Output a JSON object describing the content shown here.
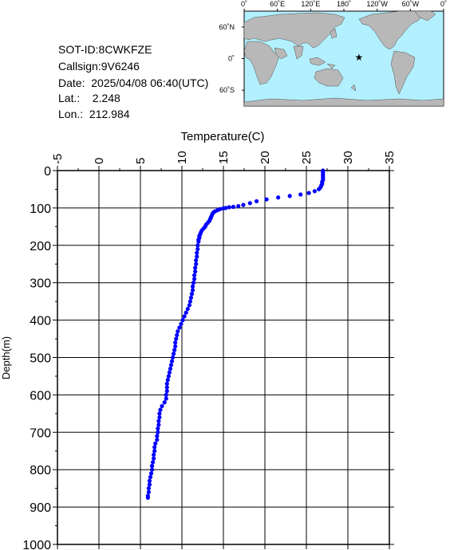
{
  "header": {
    "sot_id": "SOT-ID:8CWKFZE",
    "callsign": "Callsign:9V6246",
    "date": "Date:  2025/04/08 06:40(UTC)",
    "lat": "Lat.:    2.248",
    "lon": "Lon.:  212.984"
  },
  "map": {
    "top_labels": [
      "0˚",
      "60˚E",
      "120˚E",
      "180˚",
      "120˚W",
      "60˚W",
      "0˚"
    ],
    "side_labels": [
      "60˚N",
      "0˚",
      "60˚S"
    ],
    "marker": {
      "lat": 2.248,
      "lon": 212.984
    },
    "colors": {
      "ocean": "#b3f0ff",
      "land": "#b8b8b8",
      "marker": "#ff0000"
    }
  },
  "chart_data": {
    "type": "scatter",
    "xlabel": "Temperature(C)",
    "ylabel": "Depth(m)",
    "xlim": [
      -5,
      35
    ],
    "ylim": [
      0,
      1000
    ],
    "x_ticks": [
      -5,
      0,
      5,
      10,
      15,
      20,
      25,
      30,
      35
    ],
    "y_ticks": [
      0,
      100,
      200,
      300,
      400,
      500,
      600,
      700,
      800,
      900,
      1000
    ],
    "grid": true,
    "color": "#0000ff",
    "points": [
      [
        27.0,
        0
      ],
      [
        27.0,
        5
      ],
      [
        27.0,
        10
      ],
      [
        27.0,
        15
      ],
      [
        27.0,
        20
      ],
      [
        27.0,
        25
      ],
      [
        26.9,
        30
      ],
      [
        26.9,
        35
      ],
      [
        26.8,
        40
      ],
      [
        26.7,
        45
      ],
      [
        26.5,
        50
      ],
      [
        26.0,
        55
      ],
      [
        25.3,
        60
      ],
      [
        24.3,
        64
      ],
      [
        23.0,
        68
      ],
      [
        21.6,
        72
      ],
      [
        20.2,
        77
      ],
      [
        19.0,
        82
      ],
      [
        18.2,
        87
      ],
      [
        17.4,
        92
      ],
      [
        16.8,
        95
      ],
      [
        16.2,
        97
      ],
      [
        15.7,
        98
      ],
      [
        15.3,
        100
      ],
      [
        15.0,
        101
      ],
      [
        14.6,
        103
      ],
      [
        14.3,
        106
      ],
      [
        14.0,
        109
      ],
      [
        13.8,
        112
      ],
      [
        13.7,
        115
      ],
      [
        13.6,
        120
      ],
      [
        13.5,
        125
      ],
      [
        13.4,
        130
      ],
      [
        13.3,
        135
      ],
      [
        13.1,
        140
      ],
      [
        12.9,
        145
      ],
      [
        12.8,
        150
      ],
      [
        12.6,
        155
      ],
      [
        12.4,
        160
      ],
      [
        12.3,
        165
      ],
      [
        12.2,
        170
      ],
      [
        12.1,
        175
      ],
      [
        12.1,
        180
      ],
      [
        12.0,
        185
      ],
      [
        12.0,
        190
      ],
      [
        11.9,
        200
      ],
      [
        11.9,
        210
      ],
      [
        11.8,
        220
      ],
      [
        11.8,
        230
      ],
      [
        11.7,
        240
      ],
      [
        11.7,
        250
      ],
      [
        11.6,
        260
      ],
      [
        11.6,
        270
      ],
      [
        11.5,
        280
      ],
      [
        11.5,
        290
      ],
      [
        11.4,
        300
      ],
      [
        11.3,
        310
      ],
      [
        11.3,
        320
      ],
      [
        11.2,
        330
      ],
      [
        11.1,
        340
      ],
      [
        11.0,
        350
      ],
      [
        10.9,
        360
      ],
      [
        10.7,
        370
      ],
      [
        10.5,
        380
      ],
      [
        10.3,
        390
      ],
      [
        10.1,
        400
      ],
      [
        9.9,
        410
      ],
      [
        9.7,
        420
      ],
      [
        9.5,
        430
      ],
      [
        9.4,
        440
      ],
      [
        9.3,
        450
      ],
      [
        9.2,
        460
      ],
      [
        9.2,
        470
      ],
      [
        9.1,
        480
      ],
      [
        9.0,
        490
      ],
      [
        8.9,
        500
      ],
      [
        8.8,
        510
      ],
      [
        8.7,
        520
      ],
      [
        8.6,
        530
      ],
      [
        8.5,
        540
      ],
      [
        8.4,
        550
      ],
      [
        8.3,
        560
      ],
      [
        8.2,
        570
      ],
      [
        8.2,
        580
      ],
      [
        8.2,
        590
      ],
      [
        8.1,
        600
      ],
      [
        8.1,
        610
      ],
      [
        7.9,
        620
      ],
      [
        7.6,
        630
      ],
      [
        7.4,
        640
      ],
      [
        7.3,
        650
      ],
      [
        7.3,
        660
      ],
      [
        7.2,
        670
      ],
      [
        7.2,
        680
      ],
      [
        7.1,
        690
      ],
      [
        7.1,
        700
      ],
      [
        7.0,
        710
      ],
      [
        7.0,
        720
      ],
      [
        6.8,
        730
      ],
      [
        6.7,
        740
      ],
      [
        6.7,
        750
      ],
      [
        6.6,
        760
      ],
      [
        6.6,
        770
      ],
      [
        6.5,
        780
      ],
      [
        6.4,
        790
      ],
      [
        6.4,
        800
      ],
      [
        6.3,
        810
      ],
      [
        6.2,
        820
      ],
      [
        6.1,
        830
      ],
      [
        6.1,
        840
      ],
      [
        6.0,
        850
      ],
      [
        6.0,
        860
      ],
      [
        5.9,
        870
      ],
      [
        5.9,
        875
      ]
    ]
  }
}
